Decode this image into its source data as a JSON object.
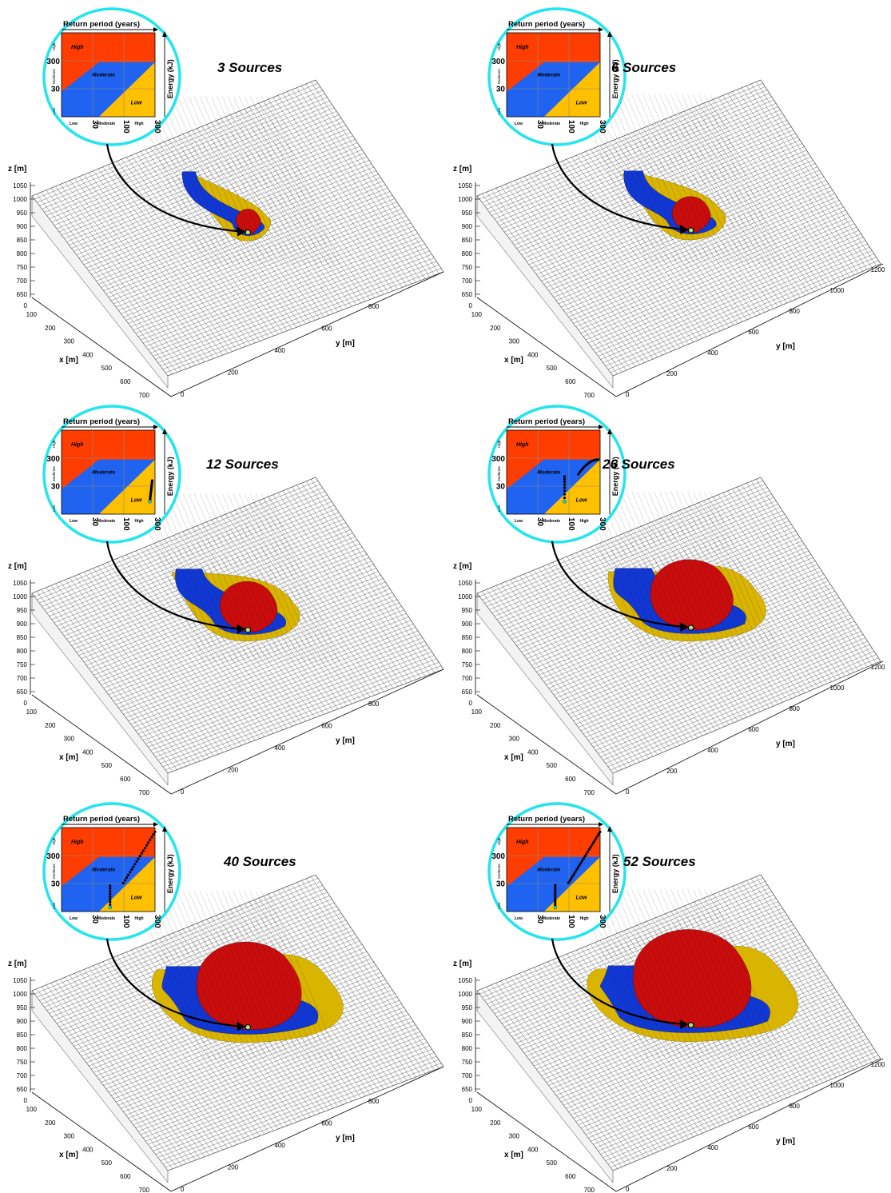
{
  "colors": {
    "high": "#ff3d00",
    "moderate": "#1f63f0",
    "low": "#ffc000",
    "hazard_red": "#c90d0d",
    "hazard_blue": "#1238d4",
    "hazard_yellow": "#d9b400",
    "mesh": "#3a3a3a",
    "lens_ring": "#22e5ee",
    "point": "#a3e87a"
  },
  "axes": {
    "z_label": "z [m]",
    "x_label": "x [m]",
    "y_label": "y [m]",
    "z_ticks": [
      "1050",
      "1000",
      "950",
      "900",
      "850",
      "800",
      "750",
      "700",
      "650"
    ],
    "z_zero": "0",
    "x_ticks": [
      "100",
      "200",
      "300",
      "400",
      "500",
      "600",
      "700"
    ],
    "y_ticks_left": [
      "0",
      "200",
      "400",
      "600",
      "800"
    ],
    "y_ticks_right": [
      "0",
      "200",
      "400",
      "600",
      "800",
      "1000",
      "1200"
    ]
  },
  "inset": {
    "title": "Return period (years)",
    "y_axis_label": "Energy (kJ)",
    "zone_high": "High",
    "zone_moderate": "Moderate",
    "zone_low": "Low",
    "row_high": "High",
    "row_moderate": "Moderate",
    "row_low": "Low",
    "col_low": "Low",
    "col_moderate": "Moderate",
    "col_high": "High",
    "e_300": "300",
    "e_30": "30",
    "t_30": "30",
    "t_100": "100",
    "t_300": "300"
  },
  "panels": [
    {
      "title": "3 Sources",
      "scale": 0.16,
      "right_axis": false
    },
    {
      "title": "6 Sources",
      "scale": 0.28,
      "right_axis": true
    },
    {
      "title": "12 Sources",
      "scale": 0.45,
      "right_axis": false
    },
    {
      "title": "26 Sources",
      "scale": 0.68,
      "right_axis": true
    },
    {
      "title": "40 Sources",
      "scale": 0.88,
      "right_axis": false
    },
    {
      "title": "52 Sources",
      "scale": 1.0,
      "right_axis": true
    }
  ]
}
